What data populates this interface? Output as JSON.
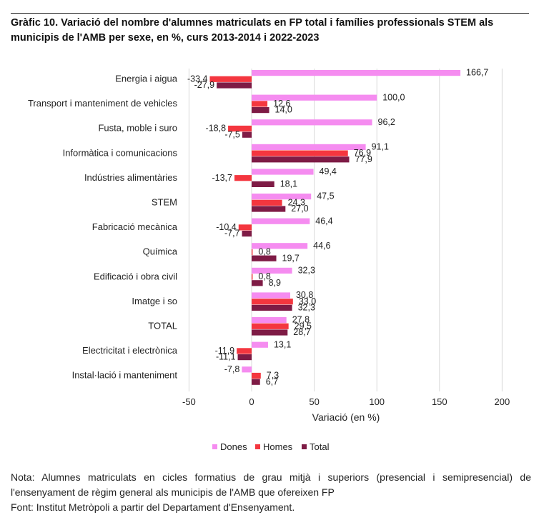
{
  "title": "Gràfic 10. Variació del nombre d'alumnes matriculats en FP total i famílies professionals STEM als municipis de l'AMB per sexe, en %, curs 2013-2014 i 2022-2023",
  "note_line1": "Nota: Alumnes matriculats en cicles formatius de grau mitjà i superiors (presencial i semipresencial) de l'ensenyament de règim general als municipis de l'AMB que ofereixen FP",
  "note_line2": "Font: Institut Metròpoli a partir del Departament d'Ensenyament.",
  "colors": {
    "Dones": "#f58cf0",
    "Homes": "#f4363f",
    "Total": "#7e1b45"
  },
  "chart_data": {
    "type": "bar",
    "orientation": "horizontal",
    "xlabel": "Variació (en %)",
    "xlim": [
      -50,
      200
    ],
    "xticks": [
      -50,
      0,
      50,
      100,
      150,
      200
    ],
    "grid": true,
    "legend_position": "bottom",
    "categories": [
      "Energia i aigua",
      "Transport i manteniment de vehicles",
      "Fusta, moble i suro",
      "Informàtica i comunicacions",
      "Indústries alimentàries",
      "STEM",
      "Fabricació mecànica",
      "Química",
      "Edificació i obra civil",
      "Imatge i so",
      "TOTAL",
      "Electricitat i electrònica",
      "Instal·lació i manteniment"
    ],
    "series": [
      {
        "name": "Dones",
        "values": [
          166.7,
          100.0,
          96.2,
          91.1,
          49.4,
          47.5,
          46.4,
          44.6,
          32.3,
          30.8,
          27.8,
          13.1,
          -7.8
        ],
        "labels": [
          "166,7",
          "100,0",
          "96,2",
          "91,1",
          "49,4",
          "47,5",
          "46,4",
          "44,6",
          "32,3",
          "30,8",
          "27,8",
          "13,1",
          "-7,8"
        ]
      },
      {
        "name": "Homes",
        "values": [
          -33.4,
          12.6,
          -18.8,
          76.9,
          -13.7,
          24.3,
          -10.4,
          0.8,
          0.8,
          33.0,
          29.5,
          -11.9,
          7.3
        ],
        "labels": [
          "-33,4",
          "12,6",
          "-18,8",
          "76,9",
          "-13,7",
          "24,3",
          "-10,4",
          "0,8",
          "0,8",
          "33,0",
          "29,5",
          "-11,9",
          "7,3"
        ]
      },
      {
        "name": "Total",
        "values": [
          -27.9,
          14.0,
          -7.5,
          77.9,
          18.1,
          27.0,
          -7.7,
          19.7,
          8.9,
          32.3,
          28.7,
          -11.1,
          6.7
        ],
        "labels": [
          "-27,9",
          "14,0",
          "-7,5",
          "77,9",
          "18,1",
          "27,0",
          "-7,7",
          "19,7",
          "8,9",
          "32,3",
          "28,7",
          "-11,1",
          "6,7"
        ]
      }
    ]
  }
}
